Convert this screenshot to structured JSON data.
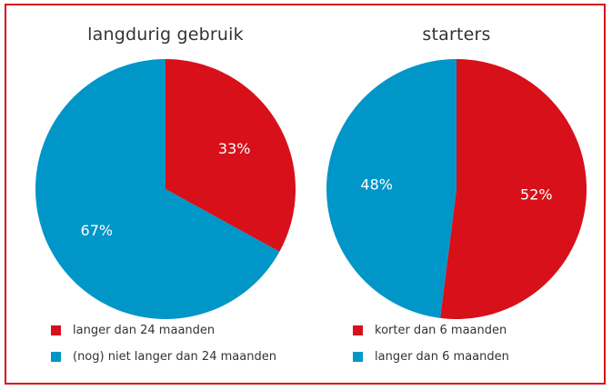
{
  "colors": {
    "red": "#d7101a",
    "blue": "#0096c8"
  },
  "chart_data": [
    {
      "type": "pie",
      "title": "langdurig gebruik",
      "slices": [
        {
          "label": "langer dan 24 maanden",
          "value": 33,
          "display": "33%",
          "color": "#d7101a"
        },
        {
          "label": "(nog) niet langer dan 24 maanden",
          "value": 67,
          "display": "67%",
          "color": "#0096c8"
        }
      ],
      "legend_placement": "bottom"
    },
    {
      "type": "pie",
      "title": "starters",
      "slices": [
        {
          "label": "korter dan 6 maanden",
          "value": 52,
          "display": "52%",
          "color": "#d7101a"
        },
        {
          "label": "langer dan 6 maanden",
          "value": 48,
          "display": "48%",
          "color": "#0096c8"
        }
      ],
      "legend_placement": "bottom"
    }
  ]
}
